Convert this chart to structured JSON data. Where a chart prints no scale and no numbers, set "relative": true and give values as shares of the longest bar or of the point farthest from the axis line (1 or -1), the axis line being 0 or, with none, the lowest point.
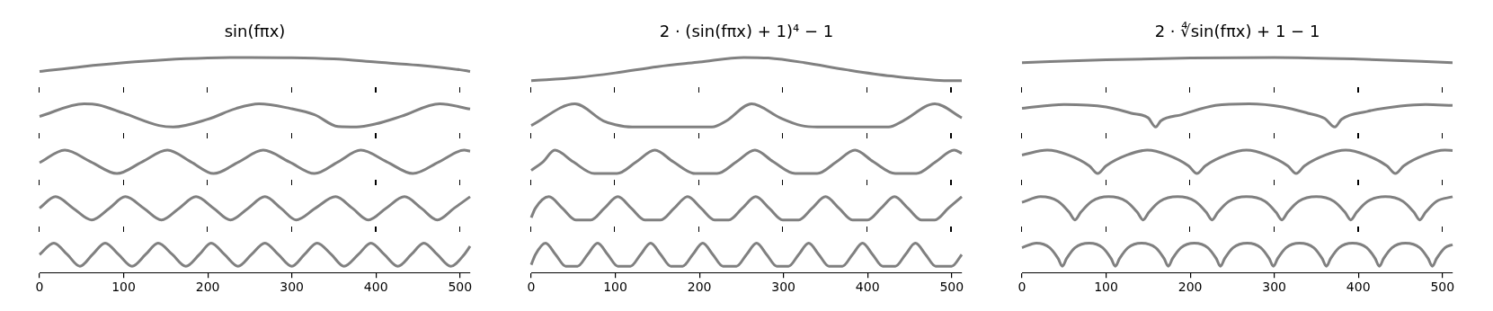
{
  "chart_data": [
    {
      "type": "line",
      "title": "sin(fπx)",
      "relative": true,
      "xlim": [
        0,
        512
      ],
      "xticks": [
        0,
        100,
        200,
        300,
        400,
        500
      ],
      "series": [
        {
          "color": "#808080",
          "x": [
            0,
            50,
            100,
            150,
            200,
            250,
            300,
            350,
            400,
            450,
            500,
            512
          ],
          "values": [
            0.933,
            0.956,
            0.975,
            0.989,
            0.997,
            1,
            0.999,
            0.993,
            0.978,
            0.963,
            0.941,
            0.933
          ]
        },
        {
          "color": "#808080",
          "x": [
            0,
            53,
            70,
            100,
            142,
            159,
            200,
            234,
            261,
            298,
            327,
            355,
            377,
            400,
            430,
            476,
            512
          ],
          "values": [
            0.718,
            0.778,
            0.773,
            0.733,
            0.674,
            0.667,
            0.704,
            0.756,
            0.778,
            0.756,
            0.726,
            0.669,
            0.667,
            0.682,
            0.718,
            0.778,
            0.753
          ]
        },
        {
          "color": "#808080",
          "x": [
            0,
            30,
            61,
            92,
            122,
            152,
            180,
            207,
            237,
            266,
            297,
            327,
            355,
            382,
            413,
            444,
            475,
            505,
            512
          ],
          "values": [
            0.496,
            0.556,
            0.5,
            0.444,
            0.5,
            0.556,
            0.5,
            0.444,
            0.5,
            0.556,
            0.5,
            0.444,
            0.5,
            0.556,
            0.5,
            0.444,
            0.5,
            0.556,
            0.551
          ]
        },
        {
          "color": "#808080",
          "x": [
            0,
            19,
            40,
            62,
            83,
            102,
            124,
            145,
            166,
            186,
            207,
            227,
            248,
            268,
            287,
            305,
            328,
            352,
            372,
            391,
            412,
            434,
            454,
            473,
            493,
            512
          ],
          "values": [
            0.278,
            0.333,
            0.278,
            0.222,
            0.278,
            0.333,
            0.278,
            0.222,
            0.278,
            0.333,
            0.278,
            0.222,
            0.278,
            0.333,
            0.278,
            0.222,
            0.278,
            0.333,
            0.278,
            0.222,
            0.278,
            0.333,
            0.278,
            0.222,
            0.278,
            0.333
          ]
        },
        {
          "color": "#808080",
          "x": [
            0,
            17,
            33,
            48,
            63,
            78,
            94,
            110,
            126,
            141,
            158,
            174,
            190,
            204,
            220,
            236,
            252,
            268,
            284,
            300,
            315,
            330,
            347,
            362,
            379,
            394,
            410,
            426,
            442,
            457,
            473,
            489,
            505,
            512
          ],
          "values": [
            0.056,
            0.111,
            0.056,
            0,
            0.056,
            0.111,
            0.056,
            0,
            0.056,
            0.111,
            0.056,
            0,
            0.056,
            0.111,
            0.056,
            0,
            0.056,
            0.111,
            0.056,
            0,
            0.056,
            0.111,
            0.056,
            0,
            0.056,
            0.111,
            0.056,
            0,
            0.056,
            0.111,
            0.056,
            0,
            0.056,
            0.096
          ]
        }
      ]
    },
    {
      "type": "line",
      "title": "2 · (sin(fπx) + 1)⁴ − 1",
      "relative": true,
      "xlim": [
        0,
        512
      ],
      "xticks": [
        0,
        100,
        200,
        300,
        400,
        500
      ],
      "series": [
        {
          "color": "#808080",
          "x": [
            0,
            54,
            100,
            150,
            200,
            253,
            282,
            325,
            375,
            428,
            500,
            512
          ],
          "values": [
            0.889,
            0.904,
            0.926,
            0.956,
            0.978,
            1,
            0.997,
            0.975,
            0.941,
            0.911,
            0.889,
            0.889
          ]
        },
        {
          "color": "#808080",
          "x": [
            0,
            52,
            86,
            100,
            120,
            180,
            215,
            232,
            262,
            296,
            321,
            340,
            400,
            425,
            442,
            480,
            512
          ],
          "values": [
            0.674,
            0.778,
            0.696,
            0.678,
            0.667,
            0.667,
            0.667,
            0.696,
            0.778,
            0.711,
            0.674,
            0.667,
            0.667,
            0.667,
            0.696,
            0.778,
            0.711
          ]
        },
        {
          "color": "#808080",
          "x": [
            0,
            14,
            28,
            50,
            75,
            102,
            125,
            147,
            169,
            195,
            221,
            244,
            266,
            288,
            314,
            340,
            363,
            385,
            407,
            433,
            458,
            481,
            503,
            512
          ],
          "values": [
            0.459,
            0.5,
            0.556,
            0.5,
            0.444,
            0.444,
            0.5,
            0.556,
            0.5,
            0.444,
            0.444,
            0.5,
            0.556,
            0.5,
            0.444,
            0.444,
            0.5,
            0.556,
            0.5,
            0.444,
            0.444,
            0.5,
            0.556,
            0.541
          ]
        },
        {
          "color": "#808080",
          "x": [
            0,
            5,
            21,
            37,
            53,
            71,
            87,
            103,
            119,
            135,
            154,
            170,
            186,
            202,
            218,
            235,
            251,
            267,
            283,
            299,
            318,
            334,
            350,
            366,
            382,
            400,
            416,
            432,
            448,
            464,
            480,
            496,
            512
          ],
          "values": [
            0.233,
            0.278,
            0.333,
            0.278,
            0.222,
            0.222,
            0.278,
            0.333,
            0.278,
            0.222,
            0.222,
            0.278,
            0.333,
            0.278,
            0.222,
            0.222,
            0.278,
            0.333,
            0.278,
            0.222,
            0.222,
            0.278,
            0.333,
            0.278,
            0.222,
            0.222,
            0.278,
            0.333,
            0.278,
            0.222,
            0.222,
            0.278,
            0.333
          ]
        },
        {
          "color": "#808080",
          "x": [
            0,
            5,
            17,
            29,
            41,
            55,
            67,
            79,
            91,
            103,
            118,
            130,
            142,
            154,
            166,
            180,
            192,
            204,
            216,
            228,
            244,
            256,
            268,
            280,
            292,
            306,
            318,
            330,
            342,
            354,
            370,
            382,
            394,
            406,
            418,
            433,
            445,
            457,
            469,
            481,
            500,
            512
          ],
          "values": [
            0.007,
            0.056,
            0.111,
            0.056,
            0,
            0,
            0.056,
            0.111,
            0.056,
            0,
            0,
            0.056,
            0.111,
            0.056,
            0,
            0,
            0.056,
            0.111,
            0.056,
            0,
            0,
            0.056,
            0.111,
            0.056,
            0,
            0,
            0.056,
            0.111,
            0.056,
            0,
            0,
            0.056,
            0.111,
            0.056,
            0,
            0,
            0.056,
            0.111,
            0.056,
            0,
            0,
            0.056
          ]
        }
      ]
    },
    {
      "type": "line",
      "title": "2 · ∜sin(fπx) + 1 − 1",
      "relative": true,
      "xlim": [
        0,
        512
      ],
      "xticks": [
        0,
        100,
        200,
        300,
        400,
        500
      ],
      "series": [
        {
          "color": "#808080",
          "x": [
            0,
            100,
            200,
            300,
            400,
            512
          ],
          "values": [
            0.975,
            0.989,
            0.997,
            1,
            0.992,
            0.975
          ]
        },
        {
          "color": "#808080",
          "x": [
            0,
            50,
            100,
            130,
            150,
            159,
            165,
            190,
            230,
            270,
            310,
            340,
            360,
            372,
            380,
            410,
            450,
            480,
            512
          ],
          "values": [
            0.756,
            0.775,
            0.763,
            0.733,
            0.711,
            0.667,
            0.696,
            0.726,
            0.77,
            0.778,
            0.763,
            0.733,
            0.708,
            0.667,
            0.704,
            0.741,
            0.767,
            0.775,
            0.77
          ]
        },
        {
          "color": "#808080",
          "x": [
            0,
            30,
            55,
            80,
            90,
            100,
            125,
            149,
            173,
            198,
            208,
            218,
            243,
            267,
            291,
            316,
            326,
            336,
            361,
            385,
            409,
            434,
            444,
            454,
            479,
            503,
            512
          ],
          "values": [
            0.533,
            0.556,
            0.533,
            0.481,
            0.444,
            0.481,
            0.533,
            0.556,
            0.533,
            0.481,
            0.444,
            0.481,
            0.533,
            0.556,
            0.533,
            0.481,
            0.444,
            0.481,
            0.533,
            0.556,
            0.533,
            0.481,
            0.444,
            0.481,
            0.533,
            0.556,
            0.554
          ]
        },
        {
          "color": "#808080",
          "x": [
            0,
            22,
            43,
            56,
            63,
            70,
            83,
            103,
            124,
            137,
            144,
            151,
            164,
            185,
            206,
            219,
            226,
            233,
            246,
            267,
            289,
            302,
            309,
            316,
            329,
            350,
            371,
            384,
            391,
            398,
            411,
            432,
            453,
            466,
            473,
            480,
            493,
            512
          ],
          "values": [
            0.306,
            0.333,
            0.311,
            0.259,
            0.222,
            0.259,
            0.311,
            0.333,
            0.311,
            0.259,
            0.222,
            0.259,
            0.311,
            0.333,
            0.311,
            0.259,
            0.222,
            0.259,
            0.311,
            0.333,
            0.311,
            0.259,
            0.222,
            0.259,
            0.311,
            0.333,
            0.311,
            0.259,
            0.222,
            0.259,
            0.311,
            0.333,
            0.311,
            0.259,
            0.222,
            0.259,
            0.311,
            0.333
          ]
        },
        {
          "color": "#808080",
          "x": [
            0,
            17,
            33,
            43,
            48,
            53,
            63,
            80,
            96,
            106,
            111,
            116,
            126,
            142,
            159,
            169,
            174,
            179,
            189,
            205,
            221,
            231,
            236,
            241,
            251,
            268,
            284,
            294,
            299,
            304,
            314,
            330,
            347,
            357,
            362,
            367,
            377,
            393,
            410,
            420,
            425,
            430,
            440,
            456,
            473,
            483,
            488,
            493,
            503,
            512
          ],
          "values": [
            0.089,
            0.111,
            0.089,
            0.037,
            0,
            0.037,
            0.089,
            0.111,
            0.089,
            0.037,
            0,
            0.037,
            0.089,
            0.111,
            0.089,
            0.037,
            0,
            0.037,
            0.089,
            0.111,
            0.089,
            0.037,
            0,
            0.037,
            0.089,
            0.111,
            0.089,
            0.037,
            0,
            0.037,
            0.089,
            0.111,
            0.089,
            0.037,
            0,
            0.037,
            0.089,
            0.111,
            0.089,
            0.037,
            0,
            0.037,
            0.089,
            0.111,
            0.089,
            0.037,
            0,
            0.037,
            0.089,
            0.104
          ]
        }
      ]
    }
  ]
}
